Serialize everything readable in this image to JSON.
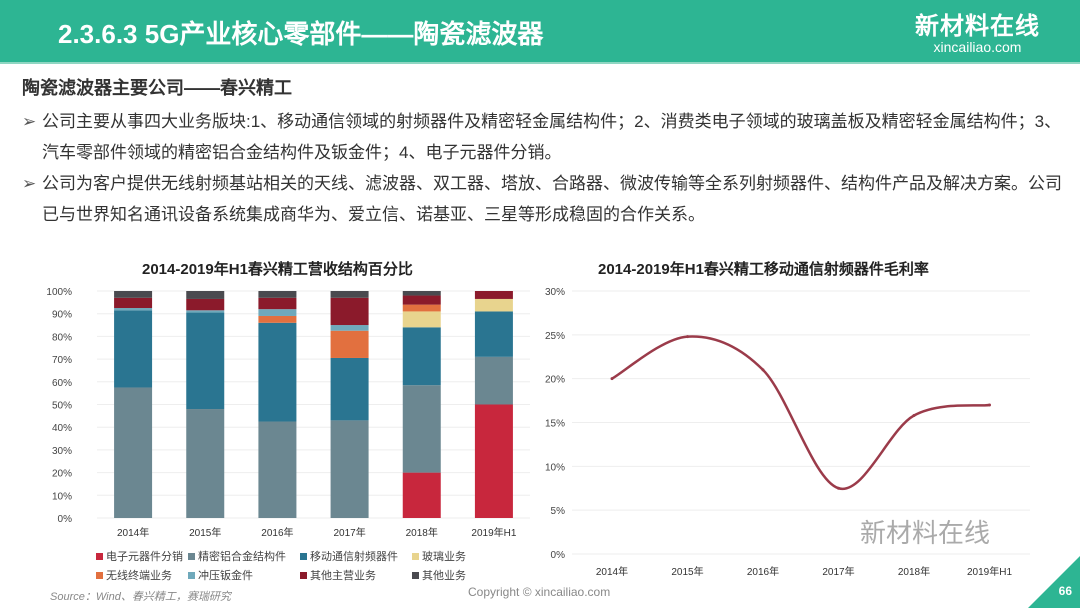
{
  "header": {
    "title": "2.3.6.3 5G产业核心零部件——陶瓷滤波器",
    "logo_cn": "新材料在线",
    "logo_en": "xincailiao.com"
  },
  "subtitle": "陶瓷滤波器主要公司——春兴精工",
  "bullets": [
    "公司主要从事四大业务版块:1、移动通信领域的射频器件及精密轻金属结构件；2、消费类电子领域的玻璃盖板及精密轻金属结构件；3、汽车零部件领域的精密铝合金结构件及钣金件；4、电子元器件分销。",
    "公司为客户提供无线射频基站相关的天线、滤波器、双工器、塔放、合路器、微波传输等全系列射频器件、结构件产品及解决方案。公司已与世界知名通讯设备系统集成商华为、爱立信、诺基亚、三星等形成稳固的合作关系。"
  ],
  "bullet_marker": "➢",
  "chart_data": [
    {
      "type": "bar",
      "stacked": true,
      "title": "2014-2019年H1春兴精工营收结构百分比",
      "categories": [
        "2014年",
        "2015年",
        "2016年",
        "2017年",
        "2018年",
        "2019年H1"
      ],
      "ylim": [
        0,
        100
      ],
      "yticks": [
        "0%",
        "10%",
        "20%",
        "30%",
        "40%",
        "50%",
        "60%",
        "70%",
        "80%",
        "90%",
        "100%"
      ],
      "series": [
        {
          "name": "电子元器件分销",
          "color": "#c8273d",
          "values": [
            0,
            0,
            0,
            0,
            20,
            50
          ]
        },
        {
          "name": "精密铝合金结构件",
          "color": "#6b8791",
          "values": [
            57.5,
            48,
            42.5,
            43,
            38.5,
            21
          ]
        },
        {
          "name": "移动通信射频器件",
          "color": "#2a7591",
          "values": [
            34,
            42.5,
            43.5,
            27.5,
            25.5,
            20
          ]
        },
        {
          "name": "玻璃业务",
          "color": "#e8d48e",
          "values": [
            0,
            0,
            0,
            0,
            7,
            5.5
          ]
        },
        {
          "name": "无线终端业务",
          "color": "#e2703f",
          "values": [
            0,
            0,
            3,
            12,
            3,
            0
          ]
        },
        {
          "name": "冲压钣金件",
          "color": "#6fa9bb",
          "values": [
            1,
            1,
            3,
            2.5,
            0,
            0
          ]
        },
        {
          "name": "其他主营业务",
          "color": "#8b1a2b",
          "values": [
            4.5,
            5,
            5,
            12,
            4,
            3.5
          ]
        },
        {
          "name": "其他业务",
          "color": "#4a4a4f",
          "values": [
            3,
            3.5,
            3,
            3,
            2,
            0
          ]
        }
      ],
      "legend": "bottom"
    },
    {
      "type": "line",
      "title": "2014-2019年H1春兴精工移动通信射频器件毛利率",
      "categories": [
        "2014年",
        "2015年",
        "2016年",
        "2017年",
        "2018年",
        "2019年H1"
      ],
      "values": [
        20,
        24.8,
        21,
        7.5,
        15.8,
        17
      ],
      "color": "#9b3b4a",
      "ylim": [
        0,
        30
      ],
      "yticks": [
        "0%",
        "5%",
        "10%",
        "15%",
        "20%",
        "25%",
        "30%"
      ]
    }
  ],
  "source": "Source：Wind、春兴精工，赛瑞研究",
  "copyright": "Copyright © xincailiao.com",
  "watermark": "新材料在线",
  "page_number": "66"
}
